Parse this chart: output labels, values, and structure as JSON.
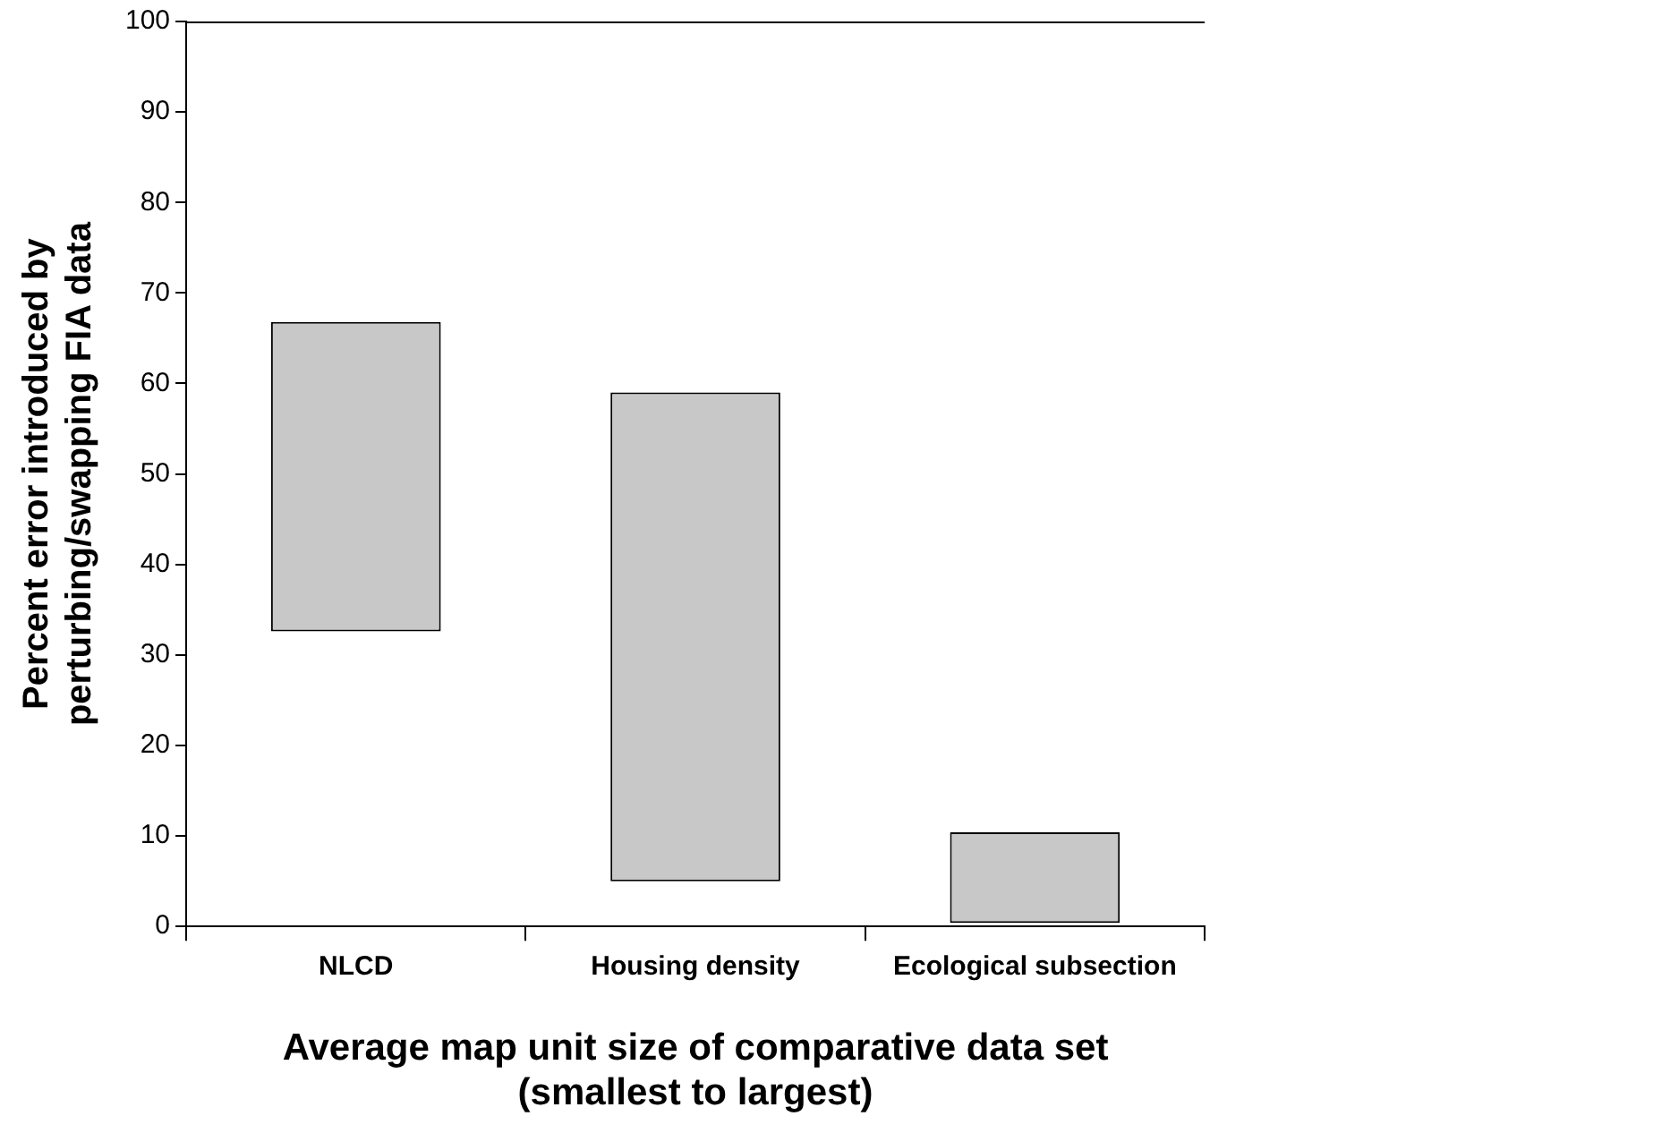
{
  "chart_data": {
    "type": "bar",
    "categories": [
      "NLCD",
      "Housing density",
      "Ecological subsection"
    ],
    "base": [
      32.6,
      5,
      0.4
    ],
    "values": [
      34.2,
      54,
      10
    ],
    "color": "#c8c8c8",
    "xlabel": "Average map unit size of comparative data set\n(smallest to largest)",
    "ylabel": "Percent error introduced by\nperturbing/swapping FIA data",
    "ylim": [
      0,
      100
    ],
    "yticks": [
      0,
      10,
      20,
      30,
      40,
      50,
      60,
      70,
      80,
      90,
      100
    ],
    "grid": false,
    "legend": false
  }
}
